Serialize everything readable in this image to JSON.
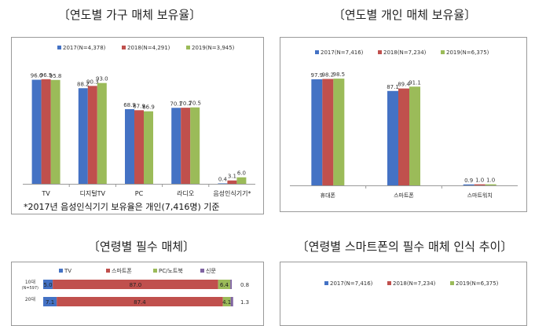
{
  "headings": {
    "household": "〔연도별 가구 매체 보유율〕",
    "personal": "〔연도별 개인 매체 보유율〕",
    "age_required": "〔연령별 필수 매체〕",
    "age_smartphone": "〔연령별 스마트폰의 필수 매체 인식 추이〕"
  },
  "footnote": "*2017년 음성인식기기 보유율은 개인(7,416명) 기준",
  "colors": {
    "y2017": "#4472c4",
    "y2018": "#c0504d",
    "y2019": "#9bbb59",
    "tv": "#4472c4",
    "smartphone": "#c0504d",
    "pc": "#9bbb59",
    "newspaper": "#8064a2"
  },
  "chart_data": [
    {
      "id": "household",
      "type": "bar",
      "title": "〔연도별 가구 매체 보유율〕",
      "categories": [
        "TV",
        "디지털TV",
        "PC",
        "라디오",
        "음성인식기기*"
      ],
      "series": [
        {
          "name": "2017(N=4,378)",
          "color": "#4472c4",
          "values": [
            96.0,
            88.2,
            68.9,
            70.1,
            0.4
          ],
          "labels": [
            "96.0",
            "88.2",
            "68.9",
            "70.1",
            "0.4"
          ]
        },
        {
          "name": "2018(N=4,291)",
          "color": "#c0504d",
          "values": [
            96.5,
            90.3,
            67.9,
            70.2,
            3.1
          ],
          "labels": [
            "96.5",
            "90.3",
            "67.9",
            "70.2",
            "3.1"
          ]
        },
        {
          "name": "2019(N=3,945)",
          "color": "#9bbb59",
          "values": [
            95.8,
            93.0,
            66.9,
            70.5,
            6.0
          ],
          "labels": [
            "95.8",
            "93.0",
            "66.9",
            "70.5",
            "6.0"
          ]
        }
      ],
      "ylim": [
        0,
        100
      ],
      "legend": "top"
    },
    {
      "id": "personal",
      "type": "bar",
      "title": "〔연도별 개인 매체 보유율〕",
      "categories": [
        "휴대폰",
        "스마트폰",
        "스마트워치"
      ],
      "series": [
        {
          "name": "2017(N=7,416)",
          "color": "#4472c4",
          "values": [
            97.9,
            87.1,
            0.9
          ],
          "labels": [
            "97.9",
            "87.1",
            "0.9"
          ]
        },
        {
          "name": "2018(N=7,234)",
          "color": "#c0504d",
          "values": [
            98.2,
            89.4,
            1.0
          ],
          "labels": [
            "98.2",
            "89.4",
            "1.0"
          ]
        },
        {
          "name": "2019(N=6,375)",
          "color": "#9bbb59",
          "values": [
            98.5,
            91.1,
            1.0
          ],
          "labels": [
            "98.5",
            "91.1",
            "1.0"
          ]
        }
      ],
      "ylim": [
        0,
        100
      ],
      "legend": "top"
    },
    {
      "id": "age_required",
      "type": "bar",
      "stacked": true,
      "orientation": "horizontal",
      "title": "〔연령별 필수 매체〕",
      "categories": [
        "10대",
        "20대"
      ],
      "category_sub": [
        "(N=597)",
        ""
      ],
      "series": [
        {
          "name": "TV",
          "color": "#4472c4",
          "values": [
            5.0,
            7.1
          ],
          "labels": [
            "5.0",
            "7.1"
          ]
        },
        {
          "name": "스마트폰",
          "color": "#c0504d",
          "values": [
            87.0,
            87.4
          ],
          "labels": [
            "87.0",
            "87.4"
          ]
        },
        {
          "name": "PC/노트북",
          "color": "#9bbb59",
          "values": [
            6.4,
            4.1
          ],
          "labels": [
            "6.4",
            "4.1"
          ]
        },
        {
          "name": "신문",
          "color": "#8064a2",
          "values": [
            0.8,
            1.3
          ],
          "labels": [
            "0.8",
            "1.3"
          ]
        }
      ],
      "xlim": [
        0,
        100
      ],
      "legend": "top"
    },
    {
      "id": "age_smartphone",
      "type": "line",
      "title": "〔연령별 스마트폰의 필수 매체 인식 추이〕",
      "series": [
        {
          "name": "2017(N=7,416)",
          "color": "#4472c4"
        },
        {
          "name": "2018(N=7,234)",
          "color": "#c0504d"
        },
        {
          "name": "2019(N=6,375)",
          "color": "#9bbb59"
        }
      ],
      "legend": "top"
    }
  ]
}
